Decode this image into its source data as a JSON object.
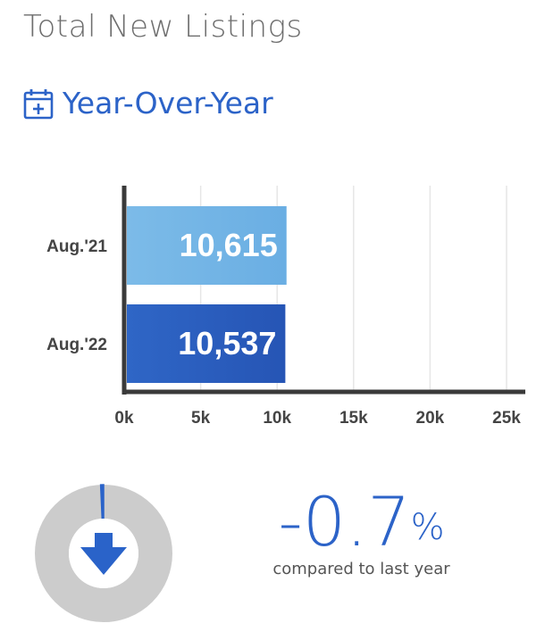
{
  "header": {
    "title": "Total New Listings",
    "subtitle": "Year-Over-Year",
    "subtitle_icon": "calendar-plus-icon"
  },
  "colors": {
    "accent": "#2c63c8",
    "bar_2021": "#6aaee3",
    "bar_2022": "#2655b5",
    "axis": "#3a3a3a",
    "grid": "#e6e6e6",
    "donut_ring": "#cccccc",
    "arrow": "#2a63c9"
  },
  "chart_data": {
    "type": "bar",
    "orientation": "horizontal",
    "categories": [
      "Aug.'21",
      "Aug.'22"
    ],
    "values": [
      10615,
      10537
    ],
    "value_labels": [
      "10,615",
      "10,537"
    ],
    "xticks": [
      0,
      5000,
      10000,
      15000,
      20000,
      25000
    ],
    "xtick_labels": [
      "0k",
      "5k",
      "10k",
      "15k",
      "20k",
      "25k"
    ],
    "xlim": [
      0,
      25000
    ],
    "grid": true,
    "title": "",
    "xlabel": "",
    "ylabel": ""
  },
  "change": {
    "number": "-0.7",
    "symbol": "%",
    "caption": "compared to last year",
    "direction_icon": "arrow-down-icon",
    "change_fraction": -0.007
  }
}
